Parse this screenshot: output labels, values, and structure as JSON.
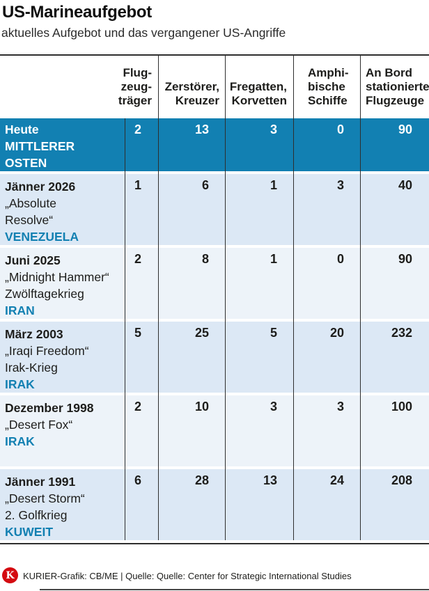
{
  "title": "US-Marineaufgebot",
  "subtitle": "aktuelles Aufgebot und das vergangener US-Angriffe",
  "colors": {
    "accent_blue": "#1280b2",
    "row_light_blue": "#dce8f5",
    "row_lighter_blue": "#edf3f9",
    "logo_red": "#d40a10",
    "line_dark": "#2e2e2e"
  },
  "table": {
    "headers": {
      "carriers": "Flug-\nzeug-\nträger",
      "destroyers": "Zerstörer,\nKreuzer",
      "frigates": "Fregatten,\nKorvetten",
      "amphibious": "Amphi-\nbische\nSchiffe",
      "aircraft": "An Bord\nstationierte\nFlugzeuge"
    },
    "rows": [
      {
        "l1": "Heute",
        "l2": "MITTLERER",
        "l3": "OSTEN",
        "country": "",
        "values": [
          "2",
          "13",
          "3",
          "0",
          "90"
        ]
      },
      {
        "l1": "Jänner 2026",
        "l2": "„Absolute",
        "l3": "Resolve“",
        "country": "VENEZUELA",
        "values": [
          "1",
          "6",
          "1",
          "3",
          "40"
        ]
      },
      {
        "l1": "Juni 2025",
        "l2": "„Midnight Hammer“",
        "l3": "Zwölftagekrieg",
        "country": "IRAN",
        "values": [
          "2",
          "8",
          "1",
          "0",
          "90"
        ]
      },
      {
        "l1": "März 2003",
        "l2": "„Iraqi Freedom“",
        "l3": "Irak-Krieg",
        "country": "IRAK",
        "values": [
          "5",
          "25",
          "5",
          "20",
          "232"
        ]
      },
      {
        "l1": "Dezember 1998",
        "l2": "„Desert Fox“",
        "l3": "",
        "country": "IRAK",
        "values": [
          "2",
          "10",
          "3",
          "3",
          "100"
        ]
      },
      {
        "l1": "Jänner 1991",
        "l2": "„Desert Storm“",
        "l3": "2. Golfkrieg",
        "country": "KUWEIT",
        "values": [
          "6",
          "28",
          "13",
          "24",
          "208"
        ]
      }
    ]
  },
  "footer": {
    "logo_letter": "K",
    "credit": "KURIER-Grafik: CB/ME | Quelle: Quelle: Center for Strategic International Studies"
  },
  "chart_data": {
    "type": "table",
    "title": "US-Marineaufgebot",
    "subtitle": "aktuelles Aufgebot und das vergangener US-Angriffe",
    "columns": [
      "Flugzeugträger",
      "Zerstörer, Kreuzer",
      "Fregatten, Korvetten",
      "Amphibische Schiffe",
      "An Bord stationierte Flugzeuge"
    ],
    "rows": [
      {
        "label": "Heute",
        "operation": "",
        "region": "MITTLERER OSTEN",
        "values": [
          2,
          13,
          3,
          0,
          90
        ]
      },
      {
        "label": "Jänner 2026",
        "operation": "„Absolute Resolve“",
        "region": "VENEZUELA",
        "values": [
          1,
          6,
          1,
          3,
          40
        ]
      },
      {
        "label": "Juni 2025",
        "operation": "„Midnight Hammer“ Zwölftagekrieg",
        "region": "IRAN",
        "values": [
          2,
          8,
          1,
          0,
          90
        ]
      },
      {
        "label": "März 2003",
        "operation": "„Iraqi Freedom“ Irak-Krieg",
        "region": "IRAK",
        "values": [
          5,
          25,
          5,
          20,
          232
        ]
      },
      {
        "label": "Dezember 1998",
        "operation": "„Desert Fox“",
        "region": "IRAK",
        "values": [
          2,
          10,
          3,
          3,
          100
        ]
      },
      {
        "label": "Jänner 1991",
        "operation": "„Desert Storm“ 2. Golfkrieg",
        "region": "KUWEIT",
        "values": [
          6,
          28,
          13,
          24,
          208
        ]
      }
    ],
    "highlight_row": 0,
    "source": "Center for Strategic International Studies"
  }
}
